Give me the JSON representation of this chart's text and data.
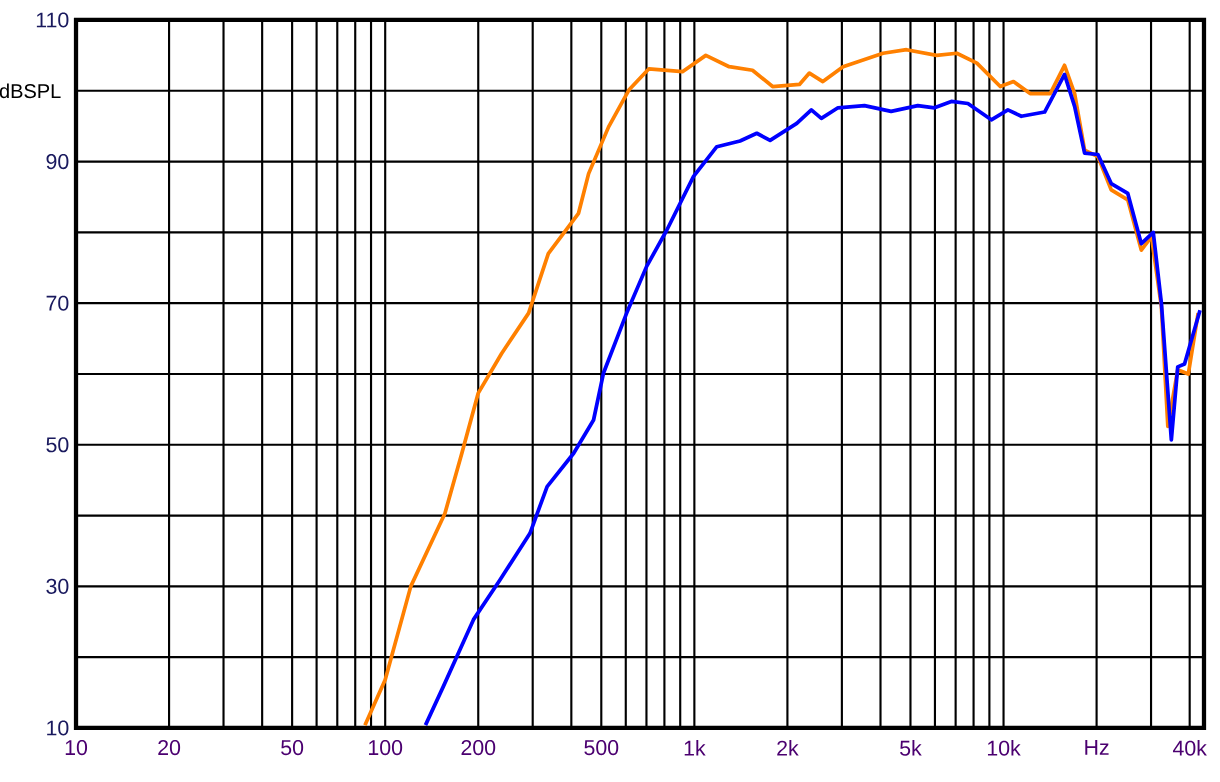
{
  "chart_data": {
    "type": "line",
    "ylabel": "dBSPL",
    "log": "x",
    "grid": true,
    "xlim": [
      10,
      44500
    ],
    "ylim": [
      10,
      110
    ],
    "xticks": [
      10,
      20,
      {
        "value": 30,
        "label": null
      },
      {
        "value": 40,
        "label": null
      },
      50,
      {
        "value": 60,
        "label": null
      },
      {
        "value": 70,
        "label": null
      },
      {
        "value": 80,
        "label": null
      },
      {
        "value": 90,
        "label": null
      },
      100,
      200,
      {
        "value": 300,
        "label": null
      },
      {
        "value": 400,
        "label": null
      },
      500,
      {
        "value": 600,
        "label": null
      },
      {
        "value": 700,
        "label": null
      },
      {
        "value": 800,
        "label": null
      },
      {
        "value": 900,
        "label": null
      },
      {
        "value": 1000,
        "label": "1k"
      },
      {
        "value": 2000,
        "label": "2k"
      },
      {
        "value": 3000,
        "label": null
      },
      {
        "value": 4000,
        "label": null
      },
      {
        "value": 5000,
        "label": "5k"
      },
      {
        "value": 6000,
        "label": null
      },
      {
        "value": 7000,
        "label": null
      },
      {
        "value": 8000,
        "label": null
      },
      {
        "value": 9000,
        "label": null
      },
      {
        "value": 10000,
        "label": "10k"
      },
      {
        "value": 20000,
        "label": "Hz"
      },
      {
        "value": 30000,
        "label": null
      },
      {
        "value": 40000,
        "label": "40k"
      }
    ],
    "yticks": [
      10,
      {
        "value": 20,
        "label": null
      },
      30,
      {
        "value": 40,
        "label": null
      },
      50,
      {
        "value": 60,
        "label": null
      },
      70,
      {
        "value": 80,
        "label": null
      },
      90,
      {
        "value": 100,
        "label": null
      },
      110
    ],
    "series": [
      {
        "color": "#ff8000",
        "x": [
          86,
          100,
          121,
          156,
          177,
          200,
          238,
          291,
          337,
          422,
          455,
          528,
          614,
          713,
          915,
          1089,
          1296,
          1542,
          1791,
          2187,
          2355,
          2604,
          3027,
          4077,
          4852,
          6077,
          7060,
          8200,
          9760,
          10770,
          12190,
          14160,
          15750,
          16980,
          18290,
          20200,
          22300,
          25230,
          27900,
          30100,
          32400,
          34000,
          36600,
          39600,
          42600
        ],
        "values": [
          10.4,
          16.8,
          30,
          40.3,
          48.8,
          57.3,
          62.9,
          68.6,
          77,
          82.7,
          88.3,
          94.9,
          100.1,
          103.1,
          102.7,
          105,
          103.4,
          102.9,
          100.6,
          100.9,
          102.5,
          101.3,
          103.4,
          105.3,
          105.8,
          105,
          105.3,
          103.9,
          100.6,
          101.3,
          99.6,
          99.6,
          103.6,
          99.6,
          91.6,
          90.7,
          86,
          84.6,
          77.5,
          79.4,
          69.5,
          52.6,
          60.6,
          60,
          68.6
        ]
      },
      {
        "color": "#0000ff",
        "x": [
          135,
          154,
          193,
          235,
          294,
          334,
          407,
          472,
          508,
          604,
          701,
          814,
          994,
          1182,
          1405,
          1592,
          1758,
          2144,
          2390,
          2575,
          2914,
          3550,
          4330,
          5280,
          5980,
          6780,
          7670,
          9130,
          10330,
          11420,
          13580,
          15750,
          16980,
          18290,
          20200,
          22300,
          25230,
          27900,
          30500,
          32400,
          34900,
          36600,
          38500,
          43200
        ],
        "values": [
          10.4,
          15.8,
          25.3,
          30.9,
          37.5,
          44.1,
          48.8,
          53.5,
          60.1,
          68.6,
          75.2,
          80.3,
          87.9,
          92.1,
          92.9,
          94,
          93,
          95.4,
          97.3,
          96.1,
          97.6,
          97.9,
          97.1,
          97.9,
          97.6,
          98.5,
          98.2,
          95.9,
          97.3,
          96.4,
          97,
          102.3,
          97.8,
          91.2,
          91,
          86.9,
          85.5,
          78.4,
          80,
          70,
          50.7,
          61,
          61.4,
          69
        ]
      }
    ]
  }
}
